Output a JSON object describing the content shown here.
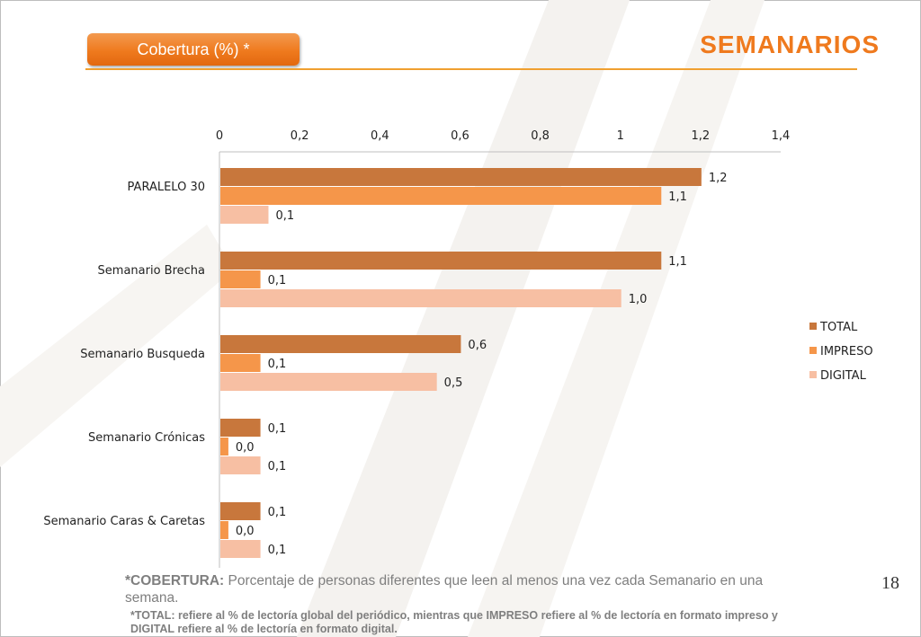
{
  "header": {
    "badge_label": "Cobertura (%) *",
    "title": "SEMANARIOS"
  },
  "page_number": "18",
  "footnote": {
    "cobertura_label": "*COBERTURA:",
    "cobertura_text": " Porcentaje de personas diferentes que leen al menos una vez cada Semanario en una semana.",
    "total_note": "*TOTAL: refiere al % de lectoría global del periódico, mientras que IMPRESO refiere al % de lectoría en formato impreso y DIGITAL refiere al % de lectoría en formato digital."
  },
  "colors": {
    "accent": "#ef7a1e",
    "total": "#c8773c",
    "impreso": "#f5964a",
    "digital": "#f7bfa3"
  },
  "chart_data": {
    "type": "bar",
    "orientation": "horizontal",
    "categories": [
      "PARALELO 30",
      "Semanario Brecha",
      "Semanario Busqueda",
      "Semanario Crónicas",
      "Semanario Caras & Caretas"
    ],
    "series": [
      {
        "name": "TOTAL",
        "values": [
          1.2,
          1.1,
          0.6,
          0.1,
          0.1
        ],
        "labels": [
          "1,2",
          "1,1",
          "0,6",
          "0,1",
          "0,1"
        ]
      },
      {
        "name": "IMPRESO",
        "values": [
          1.1,
          0.1,
          0.1,
          0.02,
          0.02
        ],
        "labels": [
          "1,1",
          "0,1",
          "0,1",
          "0,0",
          "0,0"
        ]
      },
      {
        "name": "DIGITAL",
        "values": [
          0.12,
          1.0,
          0.54,
          0.1,
          0.1
        ],
        "labels": [
          "0,1",
          "1,0",
          "0,5",
          "0,1",
          "0,1"
        ]
      }
    ],
    "xlim": [
      0,
      1.4
    ],
    "x_ticks": [
      "0",
      "0,2",
      "0,4",
      "0,6",
      "0,8",
      "1",
      "1,2",
      "1,4"
    ],
    "x_axis_position": "top",
    "grid": false,
    "legend_position": "right"
  }
}
